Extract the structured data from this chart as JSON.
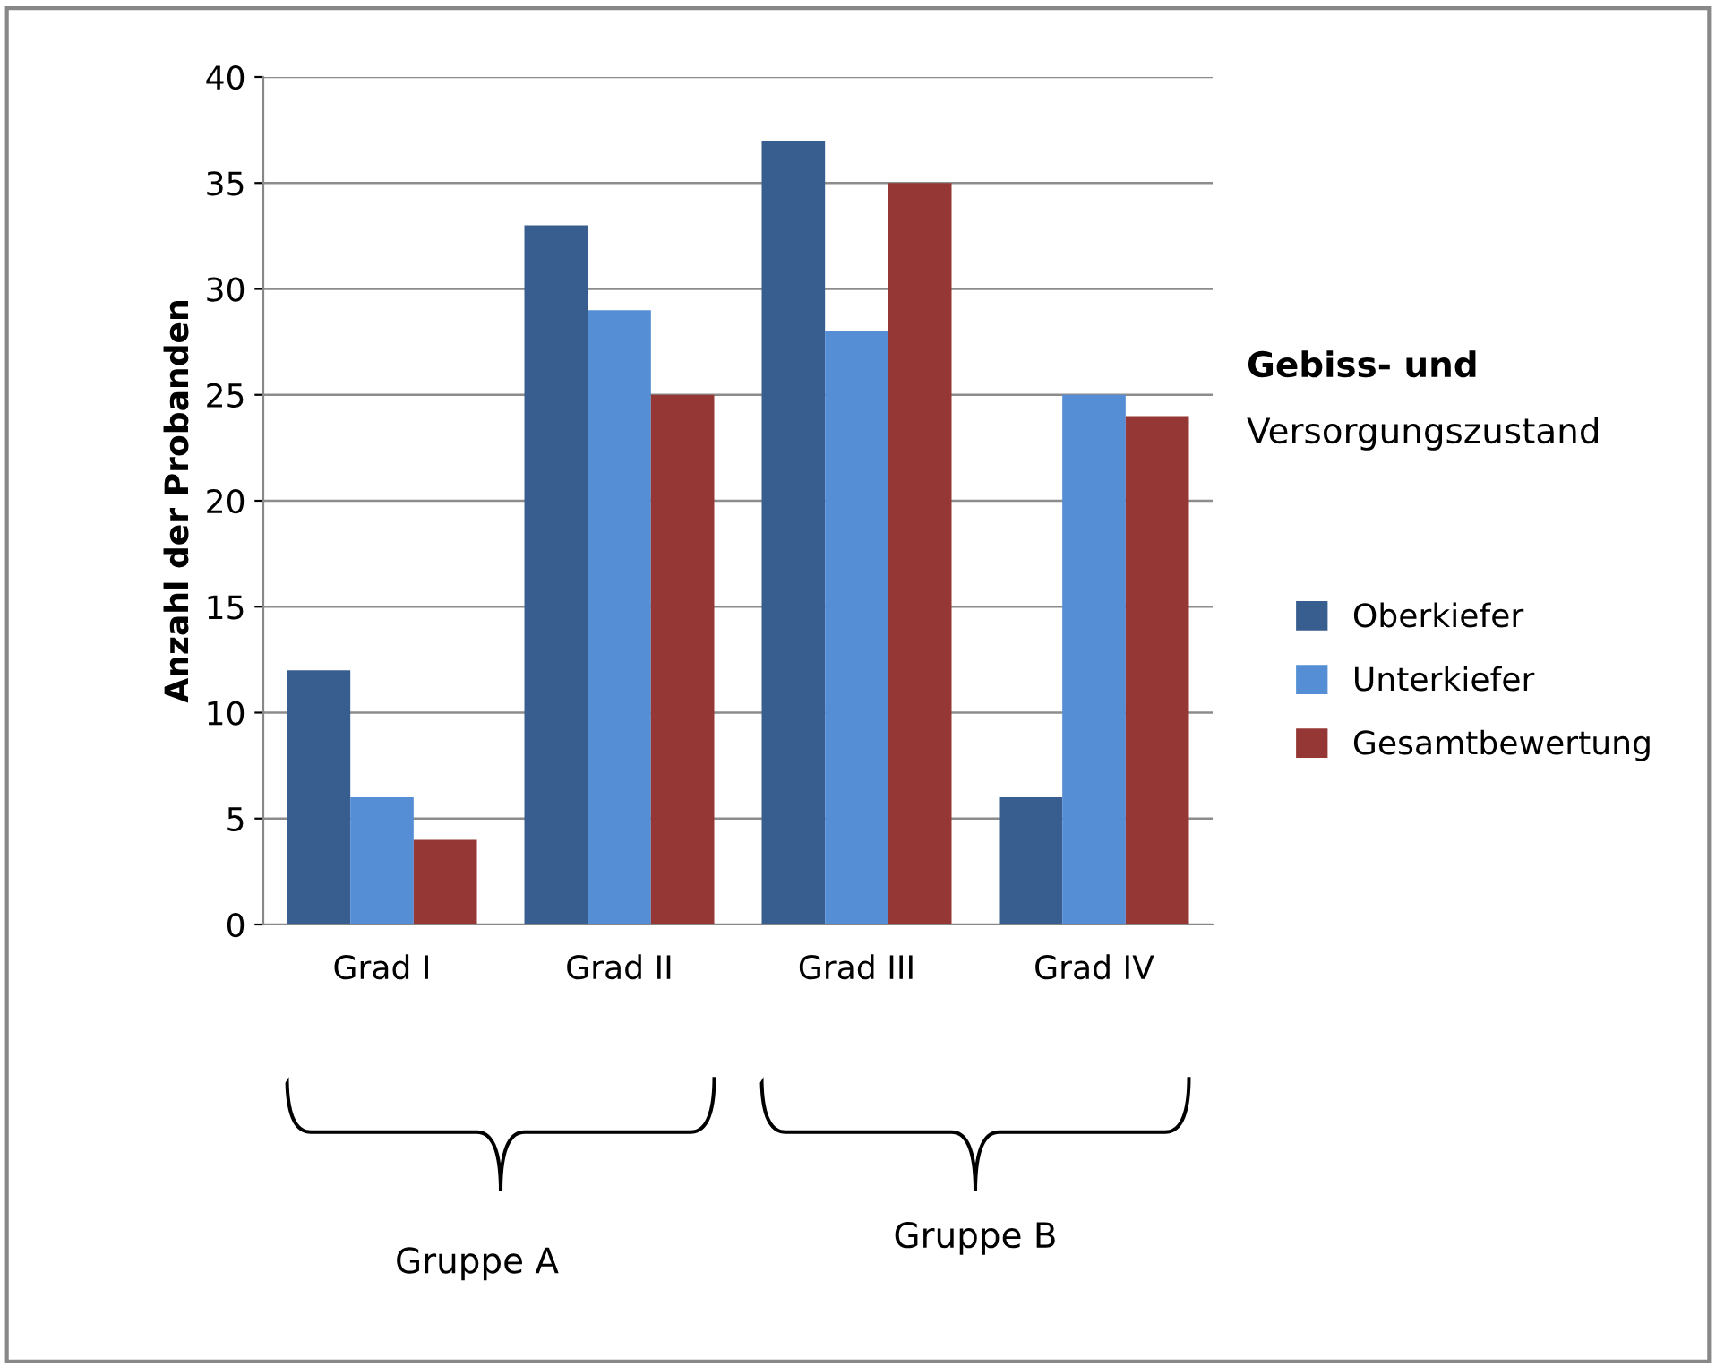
{
  "chart_data": {
    "type": "bar",
    "ylabel": "Anzahl der Probanden",
    "legend_title": "Gebiss- und\nVersorgungszustand",
    "categories": [
      "Grad I",
      "Grad II",
      "Grad III",
      "Grad IV"
    ],
    "series": [
      {
        "name": "Oberkiefer",
        "color": "#385e8f",
        "values": [
          12,
          33,
          37,
          6
        ]
      },
      {
        "name": "Unterkiefer",
        "color": "#558ed5",
        "values": [
          6,
          29,
          28,
          25
        ]
      },
      {
        "name": "Gesamtbewertung",
        "color": "#953735",
        "values": [
          4,
          25,
          35,
          24
        ]
      }
    ],
    "ylim": [
      0,
      40
    ],
    "yticks": [
      0,
      5,
      10,
      15,
      20,
      25,
      30,
      35,
      40
    ],
    "grid": "y",
    "legend": "right",
    "annotations": [
      "Gruppe A",
      "Gruppe B"
    ]
  }
}
